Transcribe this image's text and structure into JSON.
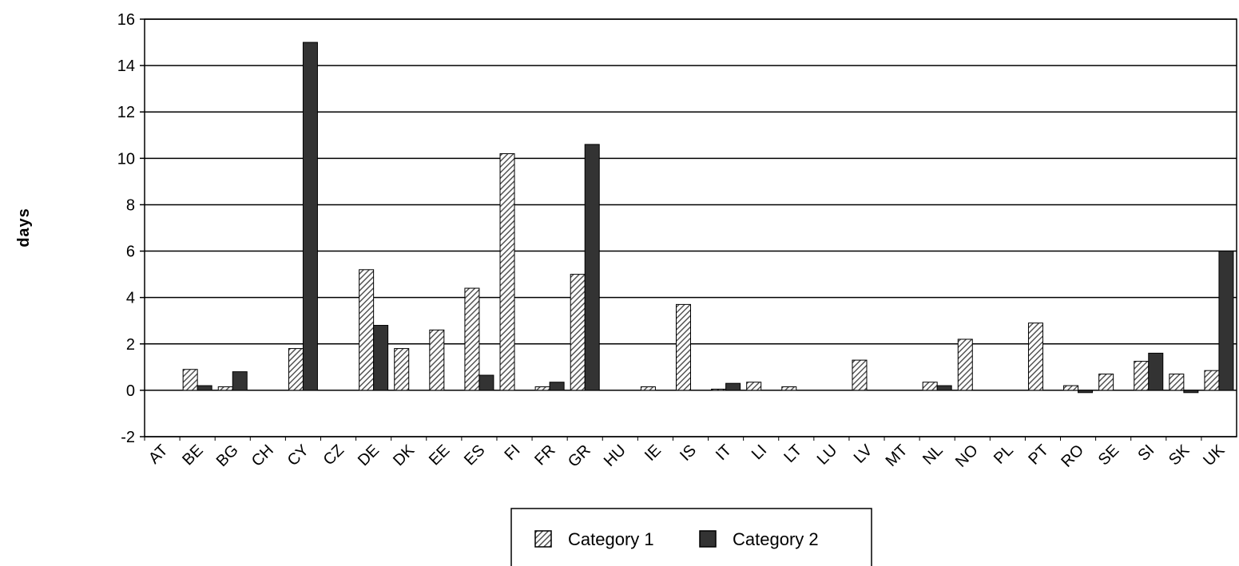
{
  "chart_data": {
    "type": "bar",
    "title": "",
    "xlabel": "",
    "ylabel": "days",
    "ylim": [
      -2,
      16
    ],
    "yticks": [
      "-2",
      "0",
      "2",
      "4",
      "6",
      "8",
      "10",
      "12",
      "14",
      "16"
    ],
    "grid": "horizontal",
    "legend_position": "bottom-center",
    "categories": [
      "AT",
      "BE",
      "BG",
      "CH",
      "CY",
      "CZ",
      "DE",
      "DK",
      "EE",
      "ES",
      "FI",
      "FR",
      "GR",
      "HU",
      "IE",
      "IS",
      "IT",
      "LI",
      "LT",
      "LU",
      "LV",
      "MT",
      "NL",
      "NO",
      "PL",
      "PT",
      "RO",
      "SE",
      "SI",
      "SK",
      "UK"
    ],
    "series": [
      {
        "name": "Category 1",
        "pattern": "diagonal-hatch",
        "color": "#555555",
        "values": [
          0,
          0.9,
          0.15,
          0,
          1.8,
          0,
          5.2,
          1.8,
          2.6,
          4.4,
          10.2,
          0.15,
          5.0,
          0,
          0.15,
          3.7,
          0.05,
          0.35,
          0.15,
          0,
          1.3,
          0,
          0.35,
          2.2,
          0,
          2.9,
          0.2,
          0.7,
          1.25,
          0.7,
          0.85
        ]
      },
      {
        "name": "Category 2",
        "pattern": "solid",
        "color": "#333333",
        "values": [
          0,
          0.2,
          0.8,
          0,
          15.0,
          0,
          2.8,
          0,
          0,
          0.65,
          0,
          0.35,
          10.6,
          0,
          0,
          0,
          0.3,
          0,
          0,
          0,
          0,
          0,
          0.2,
          0,
          0,
          0,
          -0.1,
          0,
          1.6,
          -0.1,
          6.0
        ]
      }
    ]
  }
}
